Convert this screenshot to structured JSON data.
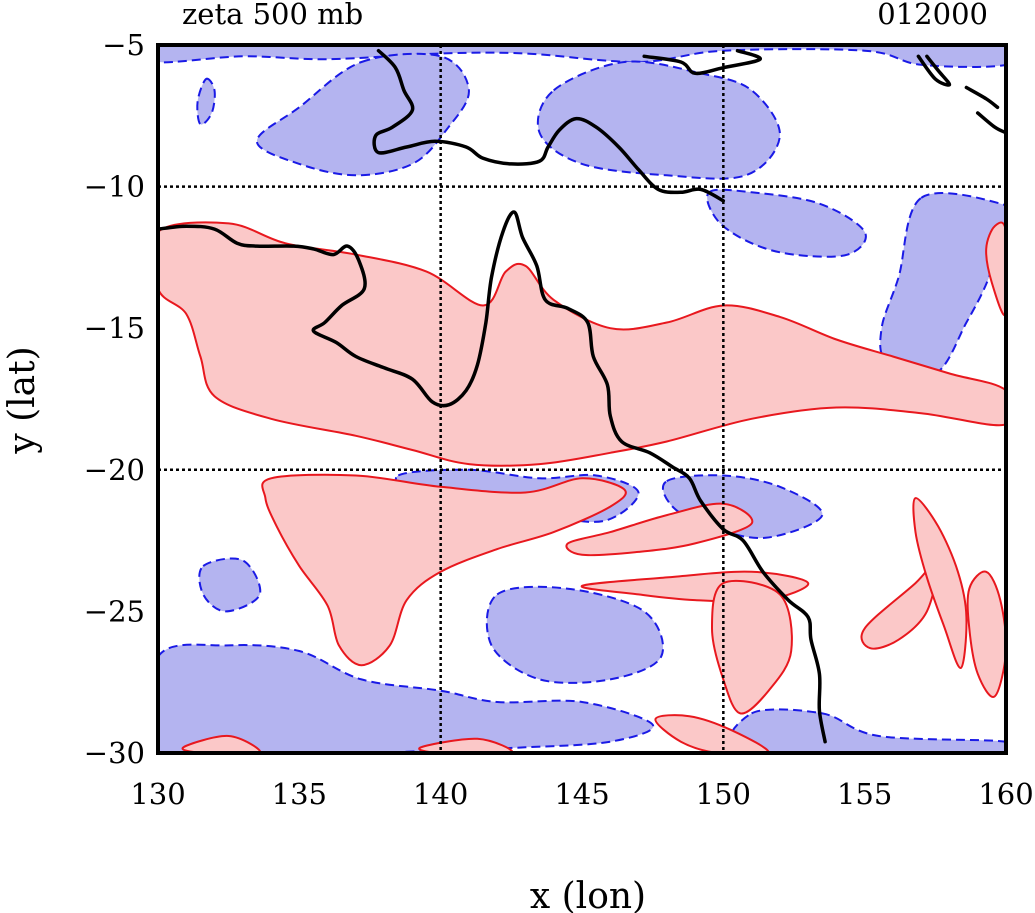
{
  "chart_data": {
    "type": "heatmap",
    "title": "zeta 500 mb",
    "title_right": "012000",
    "xlabel": "x (lon)",
    "ylabel": "y (lat)",
    "xlim": [
      130,
      160
    ],
    "ylim": [
      -30,
      -5
    ],
    "xticks": [
      130,
      135,
      140,
      145,
      150,
      155,
      160
    ],
    "yticks": [
      -5,
      -10,
      -15,
      -20,
      -25,
      -30
    ],
    "grid_lines": {
      "x": [
        140,
        150
      ],
      "y": [
        -10,
        -20
      ]
    },
    "grid": true,
    "colors": {
      "positive_fill": "#fbc8c8",
      "positive_line": "#e8181e",
      "negative_fill": "#b4b4f0",
      "negative_line": "#1a1ae6",
      "coastline": "#000000"
    },
    "positive_regions": [
      [
        [
          130,
          -11.6
        ],
        [
          132.5,
          -11.3
        ],
        [
          134.5,
          -12
        ],
        [
          137,
          -12.4
        ],
        [
          139.5,
          -13
        ],
        [
          141.5,
          -14.2
        ],
        [
          142.3,
          -13
        ],
        [
          143,
          -12.8
        ],
        [
          144,
          -14
        ],
        [
          146,
          -15
        ],
        [
          148,
          -14.8
        ],
        [
          150,
          -14.2
        ],
        [
          152,
          -14.6
        ],
        [
          154,
          -15.4
        ],
        [
          156,
          -16
        ],
        [
          158,
          -16.6
        ],
        [
          160,
          -17.2
        ],
        [
          160,
          -18.4
        ],
        [
          157,
          -18
        ],
        [
          154,
          -17.8
        ],
        [
          151,
          -18.2
        ],
        [
          148,
          -19
        ],
        [
          146,
          -19.4
        ],
        [
          143.5,
          -19.8
        ],
        [
          141,
          -19.8
        ],
        [
          139,
          -19.3
        ],
        [
          137,
          -18.8
        ],
        [
          134,
          -18.2
        ],
        [
          132,
          -17.4
        ],
        [
          131.5,
          -16
        ],
        [
          131,
          -14.5
        ],
        [
          130,
          -13.6
        ]
      ],
      [
        [
          134,
          -20.3
        ],
        [
          137,
          -20.2
        ],
        [
          140,
          -20.6
        ],
        [
          143,
          -20.8
        ],
        [
          145,
          -20.3
        ],
        [
          146.5,
          -20.7
        ],
        [
          146,
          -21.3
        ],
        [
          144,
          -22.2
        ],
        [
          142,
          -22.8
        ],
        [
          140,
          -23.6
        ],
        [
          138.8,
          -24.6
        ],
        [
          138.2,
          -26.2
        ],
        [
          137.2,
          -26.9
        ],
        [
          136.4,
          -26.2
        ],
        [
          136,
          -24.8
        ],
        [
          135,
          -23.4
        ],
        [
          134.2,
          -22
        ],
        [
          133.8,
          -21
        ]
      ],
      [
        [
          144.5,
          -22.6
        ],
        [
          146,
          -22.2
        ],
        [
          148,
          -21.6
        ],
        [
          150,
          -21.2
        ],
        [
          151,
          -21.9
        ],
        [
          149,
          -22.6
        ],
        [
          147,
          -22.9
        ],
        [
          145,
          -23
        ]
      ],
      [
        [
          145,
          -24.1
        ],
        [
          148,
          -23.8
        ],
        [
          151,
          -23.6
        ],
        [
          153,
          -24
        ],
        [
          151.5,
          -24.6
        ],
        [
          149,
          -24.6
        ],
        [
          147,
          -24.4
        ]
      ],
      [
        [
          150,
          -24
        ],
        [
          152,
          -24.4
        ],
        [
          152.4,
          -26.4
        ],
        [
          151.6,
          -27.8
        ],
        [
          150.6,
          -28.6
        ],
        [
          150,
          -27.4
        ],
        [
          149.6,
          -25.6
        ]
      ],
      [
        [
          155,
          -25.6
        ],
        [
          156.8,
          -24
        ],
        [
          157.6,
          -23.2
        ],
        [
          157.2,
          -25
        ],
        [
          156.2,
          -26
        ],
        [
          155.2,
          -26.3
        ]
      ],
      [
        [
          156.8,
          -21
        ],
        [
          157.6,
          -22
        ],
        [
          158.3,
          -23.6
        ],
        [
          158.6,
          -25.2
        ],
        [
          158.4,
          -27
        ],
        [
          157.8,
          -25.5
        ],
        [
          157.2,
          -23.8
        ],
        [
          156.8,
          -22.2
        ]
      ],
      [
        [
          158.7,
          -24.2
        ],
        [
          159.3,
          -23.6
        ],
        [
          159.8,
          -24.6
        ],
        [
          160,
          -26.4
        ],
        [
          159.6,
          -28
        ],
        [
          159,
          -27.2
        ],
        [
          158.7,
          -25.6
        ]
      ],
      [
        [
          159.6,
          -11.4
        ],
        [
          160,
          -11.6
        ],
        [
          160,
          -14.5
        ],
        [
          159.5,
          -13.4
        ],
        [
          159.3,
          -12.2
        ]
      ],
      [
        [
          130.9,
          -29.8
        ],
        [
          132.5,
          -29.4
        ],
        [
          133.6,
          -30
        ],
        [
          131.6,
          -30
        ]
      ],
      [
        [
          139.3,
          -29.8
        ],
        [
          141.3,
          -29.5
        ],
        [
          142.5,
          -30
        ],
        [
          140,
          -30
        ]
      ],
      [
        [
          147.6,
          -28.8
        ],
        [
          148.8,
          -28.7
        ],
        [
          150.3,
          -29.2
        ],
        [
          151.6,
          -30
        ],
        [
          149.8,
          -30
        ],
        [
          148.5,
          -29.6
        ]
      ]
    ],
    "negative_regions": [
      [
        [
          130,
          -5
        ],
        [
          160,
          -5
        ],
        [
          160,
          -5.7
        ],
        [
          157,
          -5.7
        ],
        [
          155,
          -5.2
        ],
        [
          150,
          -5.2
        ],
        [
          147,
          -5.6
        ],
        [
          143,
          -5.3
        ],
        [
          140,
          -5.3
        ],
        [
          136,
          -5.5
        ],
        [
          133,
          -5.4
        ],
        [
          130,
          -5.6
        ]
      ],
      [
        [
          137.2,
          -5.6
        ],
        [
          140,
          -5.4
        ],
        [
          141,
          -6.6
        ],
        [
          140.2,
          -8
        ],
        [
          139,
          -9.2
        ],
        [
          137,
          -9.6
        ],
        [
          135,
          -9.2
        ],
        [
          133.5,
          -8.4
        ],
        [
          135,
          -7.2
        ]
      ],
      [
        [
          144,
          -6.6
        ],
        [
          146.5,
          -5.6
        ],
        [
          149.2,
          -6
        ],
        [
          151,
          -6.6
        ],
        [
          152,
          -8.2
        ],
        [
          150.8,
          -9.6
        ],
        [
          148,
          -9.6
        ],
        [
          145,
          -9.2
        ],
        [
          143.5,
          -8.1
        ]
      ],
      [
        [
          131.7,
          -6.2
        ],
        [
          132,
          -6.6
        ],
        [
          131.9,
          -7.4
        ],
        [
          131.5,
          -7.8
        ],
        [
          131.4,
          -7
        ]
      ],
      [
        [
          149.5,
          -10.2
        ],
        [
          151,
          -10.2
        ],
        [
          153.4,
          -10.6
        ],
        [
          155,
          -11.6
        ],
        [
          154.4,
          -12.4
        ],
        [
          152.5,
          -12.4
        ],
        [
          151,
          -12
        ],
        [
          149.8,
          -11.2
        ]
      ],
      [
        [
          157,
          -10.4
        ],
        [
          159.8,
          -10.6
        ],
        [
          160,
          -11.2
        ],
        [
          159.4,
          -13.2
        ],
        [
          158.6,
          -14.8
        ],
        [
          157.5,
          -16.6
        ],
        [
          155.8,
          -16.2
        ],
        [
          155.6,
          -15
        ],
        [
          156.2,
          -13.2
        ]
      ],
      [
        [
          138.5,
          -20.2
        ],
        [
          141,
          -20
        ],
        [
          143.5,
          -20.3
        ],
        [
          145.5,
          -20.2
        ],
        [
          147,
          -20.8
        ],
        [
          145.8,
          -21.8
        ],
        [
          143.6,
          -21.6
        ],
        [
          141.3,
          -21.2
        ],
        [
          139.2,
          -21
        ]
      ],
      [
        [
          148,
          -20.4
        ],
        [
          150,
          -20.2
        ],
        [
          152,
          -20.6
        ],
        [
          153.5,
          -21.6
        ],
        [
          151.5,
          -22.4
        ],
        [
          149.5,
          -22
        ],
        [
          148.2,
          -21.3
        ]
      ],
      [
        [
          142,
          -24.4
        ],
        [
          144.5,
          -24.2
        ],
        [
          147.2,
          -25
        ],
        [
          147.8,
          -26.6
        ],
        [
          146,
          -27.4
        ],
        [
          143.5,
          -27.4
        ],
        [
          141.8,
          -26.2
        ]
      ],
      [
        [
          130,
          -26.6
        ],
        [
          132.5,
          -26.2
        ],
        [
          135,
          -26.4
        ],
        [
          137.2,
          -27.4
        ],
        [
          140,
          -27.8
        ],
        [
          142,
          -28.2
        ],
        [
          145,
          -28.2
        ],
        [
          147.5,
          -29
        ],
        [
          146,
          -29.6
        ],
        [
          143,
          -29.8
        ],
        [
          140,
          -29.9
        ],
        [
          137,
          -30
        ],
        [
          130,
          -30
        ]
      ],
      [
        [
          151,
          -28.6
        ],
        [
          153.5,
          -28.6
        ],
        [
          155.5,
          -29.4
        ],
        [
          160,
          -29.6
        ],
        [
          160,
          -30
        ],
        [
          151,
          -30
        ]
      ],
      [
        [
          131.6,
          -23.4
        ],
        [
          133,
          -23.2
        ],
        [
          133.6,
          -24.4
        ],
        [
          132.4,
          -25
        ],
        [
          131.6,
          -24.4
        ]
      ]
    ],
    "coastlines": [
      [
        [
          137.8,
          -5.2
        ],
        [
          138.4,
          -5.8
        ],
        [
          138.7,
          -6.6
        ],
        [
          139,
          -7.3
        ],
        [
          138.3,
          -7.9
        ],
        [
          137.7,
          -8.2
        ],
        [
          137.8,
          -8.8
        ],
        [
          138.8,
          -8.6
        ],
        [
          139.8,
          -8.4
        ],
        [
          140.9,
          -8.6
        ],
        [
          141.5,
          -9
        ],
        [
          142.5,
          -9.2
        ],
        [
          143.5,
          -9.1
        ],
        [
          143.8,
          -8.6
        ],
        [
          144.2,
          -8
        ],
        [
          144.8,
          -7.6
        ],
        [
          145.5,
          -7.9
        ],
        [
          146.3,
          -8.6
        ],
        [
          147,
          -9.4
        ],
        [
          147.7,
          -10.1
        ],
        [
          148.5,
          -10.2
        ],
        [
          149.2,
          -10.1
        ],
        [
          150,
          -10.5
        ]
      ],
      [
        [
          147.2,
          -5.4
        ],
        [
          148.5,
          -5.6
        ],
        [
          149,
          -6
        ],
        [
          150,
          -5.8
        ],
        [
          151.3,
          -5.5
        ],
        [
          150.5,
          -5.2
        ]
      ],
      [
        [
          130,
          -11.5
        ],
        [
          131,
          -11.4
        ],
        [
          132,
          -11.5
        ],
        [
          132.8,
          -12
        ],
        [
          133.5,
          -12.1
        ],
        [
          134.8,
          -12.1
        ],
        [
          135.5,
          -12.2
        ],
        [
          136.2,
          -12.4
        ],
        [
          136.7,
          -12.1
        ],
        [
          137.1,
          -12.6
        ],
        [
          137.3,
          -13.6
        ],
        [
          136.5,
          -14.2
        ],
        [
          135.9,
          -14.8
        ],
        [
          135.5,
          -15.1
        ],
        [
          136.3,
          -15.5
        ],
        [
          137,
          -16
        ],
        [
          138,
          -16.4
        ],
        [
          139,
          -16.8
        ],
        [
          139.7,
          -17.6
        ],
        [
          140.3,
          -17.7
        ],
        [
          140.9,
          -17.2
        ],
        [
          141.3,
          -16.3
        ],
        [
          141.6,
          -14.8
        ],
        [
          141.8,
          -13.2
        ],
        [
          142.2,
          -11.6
        ],
        [
          142.6,
          -10.9
        ],
        [
          142.9,
          -11.8
        ],
        [
          143.4,
          -12.8
        ],
        [
          143.7,
          -14
        ],
        [
          144.5,
          -14.3
        ],
        [
          145.2,
          -14.8
        ],
        [
          145.4,
          -16
        ],
        [
          145.9,
          -17
        ],
        [
          146,
          -18.1
        ],
        [
          146.4,
          -19
        ],
        [
          147.4,
          -19.4
        ],
        [
          148.2,
          -19.9
        ],
        [
          148.8,
          -20.3
        ],
        [
          149.2,
          -21.1
        ],
        [
          150,
          -22.1
        ],
        [
          150.7,
          -22.5
        ],
        [
          151.4,
          -23.6
        ],
        [
          152.3,
          -24.6
        ],
        [
          153,
          -25.2
        ],
        [
          153.1,
          -26
        ],
        [
          153.4,
          -27.2
        ],
        [
          153.4,
          -28.5
        ],
        [
          153.6,
          -29.6
        ]
      ],
      [
        [
          156.9,
          -5.4
        ],
        [
          157.5,
          -6.2
        ],
        [
          158,
          -6.4
        ],
        [
          157.6,
          -5.9
        ],
        [
          157.2,
          -5.4
        ]
      ],
      [
        [
          158.6,
          -6.5
        ],
        [
          159.3,
          -6.9
        ],
        [
          159.7,
          -7.2
        ]
      ],
      [
        [
          159,
          -7.4
        ],
        [
          159.6,
          -7.9
        ],
        [
          160,
          -8.1
        ]
      ]
    ]
  }
}
